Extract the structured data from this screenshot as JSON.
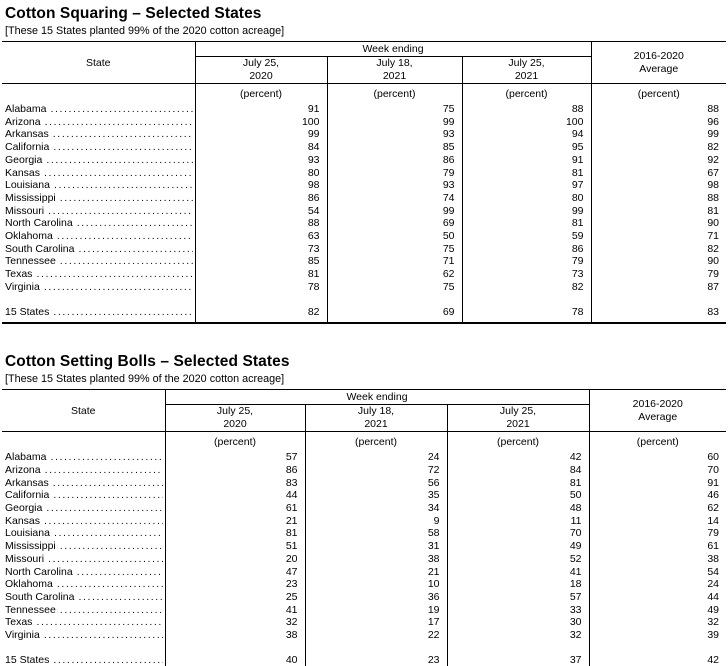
{
  "page": {
    "background": "#ffffff",
    "text_color": "#000000",
    "border_color": "#000000"
  },
  "tables": [
    {
      "title": "Cotton Squaring – Selected States",
      "subtitle": "[These 15 States planted 99% of the 2020 cotton acreage]",
      "header": {
        "state_label": "State",
        "week_ending_label": "Week ending",
        "week_columns": [
          "July 25,\n2020",
          "July 18,\n2021",
          "July 25,\n2021"
        ],
        "average_label": "2016-2020\nAverage",
        "unit_label": "(percent)"
      },
      "rows": [
        {
          "state": "Alabama",
          "values": [
            91,
            75,
            88,
            88
          ]
        },
        {
          "state": "Arizona",
          "values": [
            100,
            99,
            100,
            96
          ]
        },
        {
          "state": "Arkansas",
          "values": [
            99,
            93,
            94,
            99
          ]
        },
        {
          "state": "California",
          "values": [
            84,
            85,
            95,
            82
          ]
        },
        {
          "state": "Georgia",
          "values": [
            93,
            86,
            91,
            92
          ]
        },
        {
          "state": "Kansas",
          "values": [
            80,
            79,
            81,
            67
          ]
        },
        {
          "state": "Louisiana",
          "values": [
            98,
            93,
            97,
            98
          ]
        },
        {
          "state": "Mississippi",
          "values": [
            86,
            74,
            80,
            88
          ]
        },
        {
          "state": "Missouri",
          "values": [
            54,
            99,
            99,
            81
          ]
        },
        {
          "state": "North Carolina",
          "values": [
            88,
            69,
            81,
            90
          ]
        },
        {
          "state": "Oklahoma",
          "values": [
            63,
            50,
            59,
            71
          ]
        },
        {
          "state": "South Carolina",
          "values": [
            73,
            75,
            86,
            82
          ]
        },
        {
          "state": "Tennessee",
          "values": [
            85,
            71,
            79,
            90
          ]
        },
        {
          "state": "Texas",
          "values": [
            81,
            62,
            73,
            79
          ]
        },
        {
          "state": "Virginia",
          "values": [
            78,
            75,
            82,
            87
          ]
        }
      ],
      "total_row": {
        "state": "15 States",
        "values": [
          82,
          69,
          78,
          83
        ]
      }
    },
    {
      "title": "Cotton Setting Bolls – Selected States",
      "subtitle": "[These 15 States planted 99% of the 2020 cotton acreage]",
      "header": {
        "state_label": "State",
        "week_ending_label": "Week ending",
        "week_columns": [
          "July 25,\n2020",
          "July 18,\n2021",
          "July 25,\n2021"
        ],
        "average_label": "2016-2020\nAverage",
        "unit_label": "(percent)"
      },
      "rows": [
        {
          "state": "Alabama",
          "values": [
            57,
            24,
            42,
            60
          ]
        },
        {
          "state": "Arizona",
          "values": [
            86,
            72,
            84,
            70
          ]
        },
        {
          "state": "Arkansas",
          "values": [
            83,
            56,
            81,
            91
          ]
        },
        {
          "state": "California",
          "values": [
            44,
            35,
            50,
            46
          ]
        },
        {
          "state": "Georgia",
          "values": [
            61,
            34,
            48,
            62
          ]
        },
        {
          "state": "Kansas",
          "values": [
            21,
            9,
            11,
            14
          ]
        },
        {
          "state": "Louisiana",
          "values": [
            81,
            58,
            70,
            79
          ]
        },
        {
          "state": "Mississippi",
          "values": [
            51,
            31,
            49,
            61
          ]
        },
        {
          "state": "Missouri",
          "values": [
            20,
            38,
            52,
            38
          ]
        },
        {
          "state": "North Carolina",
          "values": [
            47,
            21,
            41,
            54
          ]
        },
        {
          "state": "Oklahoma",
          "values": [
            23,
            10,
            18,
            24
          ]
        },
        {
          "state": "South Carolina",
          "values": [
            25,
            36,
            57,
            44
          ]
        },
        {
          "state": "Tennessee",
          "values": [
            41,
            19,
            33,
            49
          ]
        },
        {
          "state": "Texas",
          "values": [
            32,
            17,
            30,
            32
          ]
        },
        {
          "state": "Virginia",
          "values": [
            38,
            22,
            32,
            39
          ]
        }
      ],
      "total_row": {
        "state": "15 States",
        "values": [
          40,
          23,
          37,
          42
        ]
      }
    }
  ]
}
